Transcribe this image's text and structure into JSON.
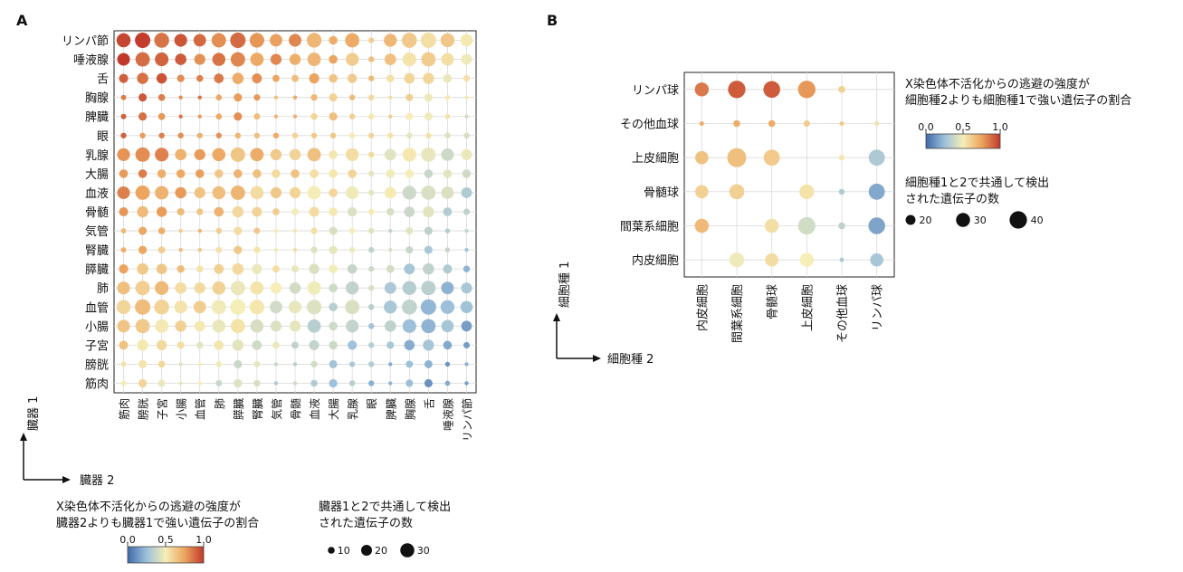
{
  "panel_labels": [
    "A",
    "B"
  ],
  "chart_data": [
    {
      "panel": "A",
      "type": "scatter",
      "subtype": "dot-matrix",
      "rows": [
        "リンパ節",
        "唾液腺",
        "舌",
        "胸腺",
        "脾臓",
        "眼",
        "乳腺",
        "大腸",
        "血液",
        "骨髄",
        "気管",
        "腎臓",
        "膵臓",
        "肺",
        "血管",
        "小腸",
        "子宮",
        "膀胱",
        "筋肉"
      ],
      "cols": [
        "筋肉",
        "膀胱",
        "子宮",
        "小腸",
        "血管",
        "肺",
        "膵臓",
        "腎臓",
        "気管",
        "骨髄",
        "血液",
        "大腸",
        "乳腺",
        "眼",
        "脾臓",
        "胸腺",
        "舌",
        "唾液腺",
        "リンパ節"
      ],
      "axis1_label": "臓器 1",
      "axis2_label": "臓器 2",
      "grid": true,
      "color_legend_title": [
        "X染色体不活化からの逃避の強度が",
        "臓器2よりも臓器1で強い遺伝子の割合"
      ],
      "color_scale_ticks": [
        "0.0",
        "0.5",
        "1.0"
      ],
      "color_scale_range": [
        0,
        1
      ],
      "size_legend_title": [
        "臓器1と2で共通して検出",
        "された遺伝子の数"
      ],
      "size_legend_values": [
        10,
        20,
        30
      ],
      "size_range": [
        5,
        35
      ]
    },
    {
      "panel": "B",
      "type": "scatter",
      "subtype": "dot-matrix",
      "rows": [
        "リンパ球",
        "その他血球",
        "上皮細胞",
        "骨髄球",
        "間葉系細胞",
        "内皮細胞"
      ],
      "cols": [
        "内皮細胞",
        "間葉系細胞",
        "骨髄球",
        "上皮細胞",
        "その他血球",
        "リンパ球"
      ],
      "axis1_label": "細胞種 1",
      "axis2_label": "細胞種 2",
      "grid": true,
      "color_legend_title": [
        "X染色体不活化からの逃避の強度が",
        "細胞種2よりも細胞種1で強い遺伝子の割合"
      ],
      "color_scale_ticks": [
        "0.0",
        "0.5",
        "1.0"
      ],
      "color_scale_range": [
        0,
        1
      ],
      "size_legend_title": [
        "細胞種1と2で共通して検出",
        "された遺伝子の数"
      ],
      "size_legend_values": [
        20,
        30,
        40
      ],
      "size_range": [
        10,
        45
      ],
      "points": [
        {
          "row": 0,
          "col": 0,
          "v": 0.85,
          "n": 30
        },
        {
          "row": 0,
          "col": 1,
          "v": 0.92,
          "n": 40
        },
        {
          "row": 0,
          "col": 2,
          "v": 0.92,
          "n": 38
        },
        {
          "row": 0,
          "col": 3,
          "v": 0.78,
          "n": 40
        },
        {
          "row": 0,
          "col": 4,
          "v": 0.6,
          "n": 14
        },
        {
          "row": 1,
          "col": 0,
          "v": 0.72,
          "n": 10
        },
        {
          "row": 1,
          "col": 1,
          "v": 0.72,
          "n": 14
        },
        {
          "row": 1,
          "col": 2,
          "v": 0.72,
          "n": 14
        },
        {
          "row": 1,
          "col": 3,
          "v": 0.62,
          "n": 13
        },
        {
          "row": 1,
          "col": 4,
          "v": 0.62,
          "n": 10
        },
        {
          "row": 1,
          "col": 5,
          "v": 0.55,
          "n": 10
        },
        {
          "row": 2,
          "col": 0,
          "v": 0.65,
          "n": 28
        },
        {
          "row": 2,
          "col": 1,
          "v": 0.66,
          "n": 45
        },
        {
          "row": 2,
          "col": 2,
          "v": 0.62,
          "n": 36
        },
        {
          "row": 2,
          "col": 4,
          "v": 0.52,
          "n": 12
        },
        {
          "row": 2,
          "col": 5,
          "v": 0.3,
          "n": 36
        },
        {
          "row": 3,
          "col": 0,
          "v": 0.6,
          "n": 28
        },
        {
          "row": 3,
          "col": 1,
          "v": 0.6,
          "n": 33
        },
        {
          "row": 3,
          "col": 3,
          "v": 0.54,
          "n": 32
        },
        {
          "row": 3,
          "col": 4,
          "v": 0.3,
          "n": 12
        },
        {
          "row": 3,
          "col": 5,
          "v": 0.18,
          "n": 36
        },
        {
          "row": 4,
          "col": 0,
          "v": 0.68,
          "n": 30
        },
        {
          "row": 4,
          "col": 2,
          "v": 0.55,
          "n": 30
        },
        {
          "row": 4,
          "col": 3,
          "v": 0.4,
          "n": 40
        },
        {
          "row": 4,
          "col": 4,
          "v": 0.35,
          "n": 14
        },
        {
          "row": 4,
          "col": 5,
          "v": 0.17,
          "n": 38
        },
        {
          "row": 5,
          "col": 1,
          "v": 0.48,
          "n": 32
        },
        {
          "row": 5,
          "col": 2,
          "v": 0.56,
          "n": 28
        },
        {
          "row": 5,
          "col": 3,
          "v": 0.5,
          "n": 30
        },
        {
          "row": 5,
          "col": 4,
          "v": 0.3,
          "n": 10
        },
        {
          "row": 5,
          "col": 5,
          "v": 0.28,
          "n": 28
        }
      ]
    }
  ]
}
